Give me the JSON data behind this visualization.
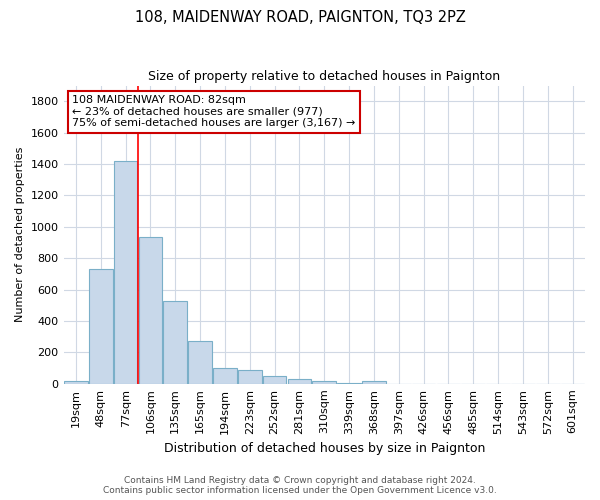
{
  "title": "108, MAIDENWAY ROAD, PAIGNTON, TQ3 2PZ",
  "subtitle": "Size of property relative to detached houses in Paignton",
  "xlabel": "Distribution of detached houses by size in Paignton",
  "ylabel": "Number of detached properties",
  "categories": [
    "19sqm",
    "48sqm",
    "77sqm",
    "106sqm",
    "135sqm",
    "165sqm",
    "194sqm",
    "223sqm",
    "252sqm",
    "281sqm",
    "310sqm",
    "339sqm",
    "368sqm",
    "397sqm",
    "426sqm",
    "456sqm",
    "485sqm",
    "514sqm",
    "543sqm",
    "572sqm",
    "601sqm"
  ],
  "values": [
    20,
    730,
    1420,
    935,
    530,
    270,
    100,
    90,
    50,
    30,
    20,
    5,
    15,
    0,
    0,
    0,
    0,
    0,
    0,
    0,
    0
  ],
  "bar_color": "#c8d8ea",
  "bar_edge_color": "#7aafc8",
  "red_line_index": 2,
  "annotation_line1": "108 MAIDENWAY ROAD: 82sqm",
  "annotation_line2": "← 23% of detached houses are smaller (977)",
  "annotation_line3": "75% of semi-detached houses are larger (3,167) →",
  "annotation_box_color": "#ffffff",
  "annotation_box_edge": "#cc0000",
  "ylim": [
    0,
    1900
  ],
  "yticks": [
    0,
    200,
    400,
    600,
    800,
    1000,
    1200,
    1400,
    1600,
    1800
  ],
  "grid_color": "#d0d8e4",
  "plot_bg": "#ffffff",
  "footer": "Contains HM Land Registry data © Crown copyright and database right 2024.\nContains public sector information licensed under the Open Government Licence v3.0.",
  "title_fontsize": 10.5,
  "subtitle_fontsize": 9,
  "xlabel_fontsize": 9,
  "ylabel_fontsize": 8,
  "tick_fontsize": 8,
  "annot_fontsize": 8,
  "footer_fontsize": 6.5
}
